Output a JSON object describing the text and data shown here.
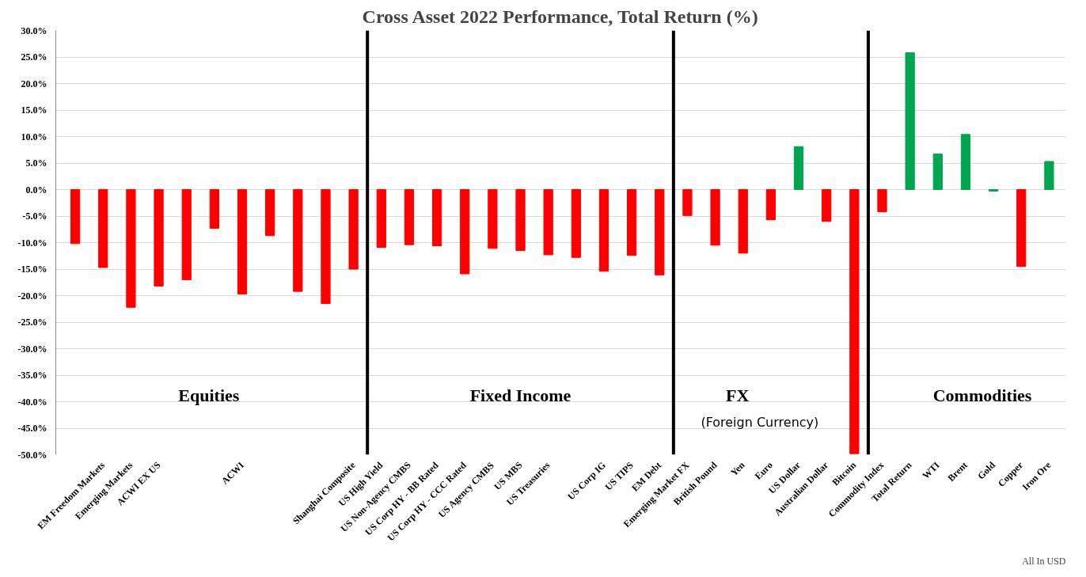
{
  "chart_data": {
    "type": "bar",
    "title": "Cross Asset 2022 Performance, Total Return (%)",
    "categories": [
      null,
      "EM Freedom Markets",
      "Emerging Markets",
      "ACWI EX US",
      null,
      null,
      "ACWI",
      null,
      null,
      null,
      "Shanghai Composite",
      "US High Yield",
      "US Non-Agency CMBS",
      "US Corp HY - BB Rated",
      "US Corp HY - CCC Rated",
      "US Agency CMBS",
      "US MBS",
      "US Treasuries",
      null,
      "US Corp IG",
      "US TIPS",
      "EM Debt",
      "Emerging Market FX",
      "British Pound",
      "Yen",
      "Euro",
      "US Dollar",
      "Australian Dollar",
      "Bitcoin",
      "Commodity Index",
      "Total Return",
      "WTI",
      "Brent",
      "Gold",
      "Copper",
      "Iron Ore"
    ],
    "values": [
      -10.2,
      -14.7,
      -22.2,
      -18.2,
      -17.0,
      -7.3,
      -19.7,
      -8.7,
      -19.2,
      -21.5,
      -15.0,
      -10.9,
      -10.4,
      -10.6,
      -15.9,
      -11.1,
      -11.5,
      -12.3,
      -12.8,
      -15.4,
      -12.4,
      -16.1,
      -4.9,
      -10.5,
      -12.0,
      -5.7,
      8.1,
      -6.0,
      -49.8,
      -4.2,
      25.8,
      6.7,
      10.4,
      -0.3,
      -14.5,
      5.3
    ],
    "colors": [
      "#ff0000",
      "#ff0000",
      "#ff0000",
      "#ff0000",
      "#ff0000",
      "#ff0000",
      "#ff0000",
      "#ff0000",
      "#ff0000",
      "#ff0000",
      "#ff0000",
      "#ff0000",
      "#ff0000",
      "#ff0000",
      "#ff0000",
      "#ff0000",
      "#ff0000",
      "#ff0000",
      "#ff0000",
      "#ff0000",
      "#ff0000",
      "#ff0000",
      "#ff0000",
      "#ff0000",
      "#ff0000",
      "#ff0000",
      "#00a550",
      "#ff0000",
      "#ff0000",
      "#ff0000",
      "#00a550",
      "#00a550",
      "#00a550",
      "#00a550",
      "#ff0000",
      "#00a550"
    ],
    "ylim": [
      -50,
      30
    ],
    "yticks": [
      {
        "value": -50,
        "label": "-50.0%"
      },
      {
        "value": -45,
        "label": "-45.0%"
      },
      {
        "value": -40,
        "label": "-40.0%"
      },
      {
        "value": -35,
        "label": "-35.0%"
      },
      {
        "value": -30,
        "label": "-30.0%"
      },
      {
        "value": -25,
        "label": "-25.0%"
      },
      {
        "value": -20,
        "label": "-20.0%"
      },
      {
        "value": -15,
        "label": "-15.0%"
      },
      {
        "value": -10,
        "label": "-10.0%"
      },
      {
        "value": -5,
        "label": "-5.0%"
      },
      {
        "value": 0,
        "label": "0.0%"
      },
      {
        "value": 5,
        "label": "5.0%"
      },
      {
        "value": 10,
        "label": "10.0%"
      },
      {
        "value": 15,
        "label": "15.0%"
      },
      {
        "value": 20,
        "label": "20.0%"
      },
      {
        "value": 25,
        "label": "25.0%"
      },
      {
        "value": 30,
        "label": "30.0%"
      }
    ],
    "grid": "y",
    "annotations": [
      "Equities",
      "Fixed Income",
      "FX",
      "(Foreign Currency)",
      "Commodities",
      "All In USD"
    ]
  }
}
